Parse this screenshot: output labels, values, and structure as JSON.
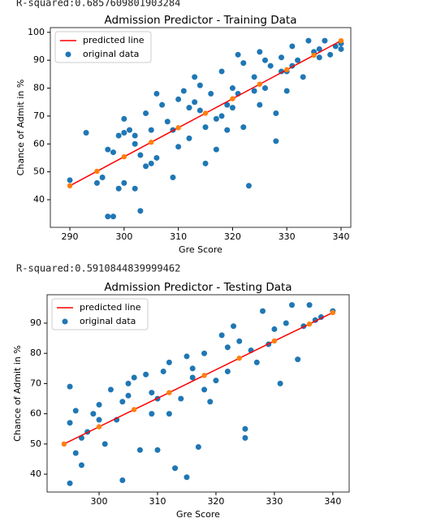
{
  "outputs": [
    "R-squared:0.6857609801903284",
    "R-squared:0.5910844839999462"
  ],
  "chart_data": [
    {
      "type": "scatter",
      "title": "Admission Predictor - Training Data",
      "xlabel": "Gre Score",
      "ylabel": "Chance of Admit in %",
      "xlim": [
        286.4,
        341.8
      ],
      "ylim": [
        30.1,
        101.7
      ],
      "xticks": [
        290,
        300,
        310,
        320,
        330,
        340
      ],
      "yticks": [
        40,
        50,
        60,
        70,
        80,
        90,
        100
      ],
      "legend": "upper left",
      "series": [
        {
          "name": "predicted line",
          "draw": "line",
          "color": "#ff0000",
          "marker_color": "#ff7f0e",
          "x": [
            290,
            295,
            300,
            305,
            310,
            315,
            320,
            325,
            330,
            335,
            340
          ],
          "values": [
            45,
            50.2,
            55.4,
            60.6,
            65.8,
            71,
            76.2,
            81.4,
            86.6,
            91.8,
            97
          ]
        },
        {
          "name": "original data",
          "draw": "points",
          "color": "#1f77b4",
          "x": [
            290,
            293,
            295,
            296,
            297,
            298,
            297,
            298,
            299,
            299,
            300,
            300,
            300,
            301,
            302,
            302,
            303,
            303,
            304,
            304,
            305,
            305,
            306,
            307,
            308,
            309,
            310,
            310,
            311,
            312,
            312,
            313,
            314,
            315,
            315,
            316,
            317,
            318,
            318,
            319,
            320,
            320,
            321,
            322,
            322,
            323,
            324,
            325,
            325,
            326,
            327,
            328,
            328,
            329,
            330,
            330,
            331,
            332,
            333,
            334,
            335,
            336,
            337,
            338,
            339,
            340,
            340,
            302,
            306,
            309,
            313,
            317,
            321,
            326,
            331,
            336,
            314,
            319,
            324,
            329
          ],
          "values": [
            47,
            64,
            46,
            48,
            34,
            34,
            58,
            57,
            63,
            44,
            46,
            69,
            64,
            65,
            60,
            44,
            36,
            56,
            71,
            52,
            65,
            53,
            78,
            74,
            68,
            48,
            76,
            59,
            79,
            73,
            62,
            84,
            72,
            53,
            66,
            78,
            58,
            70,
            86,
            65,
            80,
            73,
            92,
            89,
            66,
            45,
            84,
            93,
            74,
            80,
            88,
            71,
            61,
            91,
            86,
            79,
            95,
            90,
            84,
            97,
            93,
            91,
            97,
            92,
            95,
            94,
            96,
            63,
            55,
            65,
            75,
            69,
            78,
            90,
            88,
            94,
            81,
            74,
            79,
            86
          ]
        }
      ]
    },
    {
      "type": "scatter",
      "title": "Admission Predictor - Testing Data",
      "xlabel": "Gre Score",
      "ylabel": "Chance of Admit in %",
      "xlim": [
        291.1,
        342.8
      ],
      "ylim": [
        34.1,
        99.4
      ],
      "xticks": [
        300,
        310,
        320,
        330,
        340
      ],
      "yticks": [
        40,
        50,
        60,
        70,
        80,
        90
      ],
      "legend": "upper left",
      "series": [
        {
          "name": "predicted line",
          "draw": "line",
          "color": "#ff0000",
          "marker_color": "#ff7f0e",
          "x": [
            294,
            300,
            306,
            312,
            318,
            324,
            330,
            336,
            340
          ],
          "values": [
            50,
            55.7,
            61.4,
            67,
            72.7,
            78.4,
            84.1,
            89.7,
            93.5
          ]
        },
        {
          "name": "original data",
          "draw": "points",
          "color": "#1f77b4",
          "x": [
            295,
            295,
            295,
            296,
            296,
            297,
            297,
            298,
            299,
            300,
            300,
            301,
            302,
            303,
            304,
            304,
            305,
            306,
            307,
            308,
            309,
            310,
            310,
            311,
            312,
            312,
            313,
            314,
            315,
            315,
            316,
            317,
            318,
            318,
            319,
            320,
            321,
            322,
            323,
            324,
            325,
            325,
            326,
            327,
            328,
            329,
            330,
            331,
            332,
            333,
            334,
            335,
            336,
            337,
            338,
            340,
            305,
            309,
            316,
            322
          ],
          "values": [
            37,
            69,
            57,
            47,
            61,
            43,
            52,
            54,
            60,
            58,
            63,
            50,
            68,
            58,
            38,
            64,
            66,
            72,
            48,
            73,
            60,
            48,
            65,
            74,
            77,
            60,
            42,
            65,
            39,
            79,
            75,
            49,
            68,
            80,
            64,
            71,
            86,
            74,
            89,
            84,
            55,
            52,
            81,
            77,
            94,
            83,
            88,
            70,
            90,
            96,
            78,
            89,
            96,
            91,
            92,
            94,
            70,
            67,
            72,
            82
          ]
        }
      ]
    }
  ]
}
